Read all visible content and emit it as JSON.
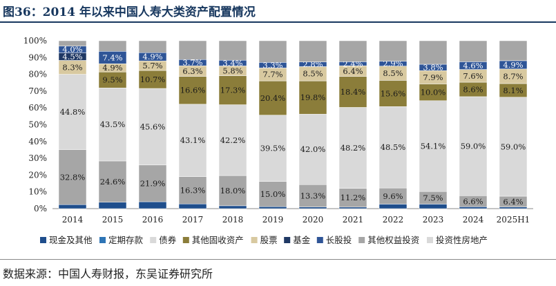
{
  "header": {
    "title": "图36：2014 年以来中国人寿大类资产配置情况"
  },
  "footer": {
    "source": "数据来源：中国人寿财报，东吴证券研究所"
  },
  "colors": {
    "cash": "#1f4e8c",
    "deposit": "#2e75b6",
    "bond": "#d9d9d9",
    "fixed_other": "#8b7d3a",
    "stock": "#d8c9a0",
    "fund": "#1f3864",
    "lt_equity": "#2f5597",
    "other_equity": "#a6a6a6",
    "property": "#d9d9d9"
  },
  "chart_data": {
    "type": "bar",
    "stacked": true,
    "categories": [
      "2014",
      "2015",
      "2016",
      "2017",
      "2018",
      "2019",
      "2020",
      "2021",
      "2022",
      "2023",
      "2024",
      "2025H1"
    ],
    "ylim": [
      0,
      100
    ],
    "yticks": [
      "0%",
      "10%",
      "20%",
      "30%",
      "40%",
      "50%",
      "60%",
      "70%",
      "80%",
      "90%",
      "100%"
    ],
    "legend_position": "bottom",
    "series": [
      {
        "name": "现金及其他",
        "key": "cash",
        "values": [
          2.4,
          3.8,
          4.1,
          2.8,
          1.7,
          1.2,
          1.0,
          0.9,
          2.7,
          2.7,
          1.1,
          1.0
        ],
        "labels": []
      },
      {
        "name": "定期存款",
        "key": "deposit",
        "values": [
          0,
          0,
          0,
          0,
          0,
          0,
          0,
          0,
          0,
          0,
          0,
          0
        ],
        "labels": []
      },
      {
        "name": "债券",
        "key": "bond",
        "values": [
          0,
          0,
          0,
          0,
          0,
          0,
          0,
          0,
          0,
          0,
          0,
          0
        ],
        "labels": []
      },
      {
        "name": "其他权益投资",
        "key": "other_equity",
        "values": [
          32.8,
          24.6,
          21.9,
          16.3,
          18.0,
          15.0,
          13.3,
          11.2,
          9.6,
          7.5,
          6.6,
          6.4
        ],
        "labels": [
          "32.8%",
          "24.6%",
          "21.9%",
          "16.3%",
          "18.0%",
          "15.0%",
          "13.3%",
          "11.2%",
          "9.6%",
          "7.5%",
          "6.6%",
          "6.4%"
        ]
      },
      {
        "name": "投资性房地产",
        "key": "property",
        "values": [
          44.8,
          43.5,
          45.6,
          43.1,
          42.2,
          39.5,
          42.0,
          48.2,
          48.5,
          54.1,
          59.0,
          59.0
        ],
        "labels": [
          "44.8%",
          "43.5%",
          "45.6%",
          "43.1%",
          "42.2%",
          "39.5%",
          "42.0%",
          "48.2%",
          "48.5%",
          "54.1%",
          "59.0%",
          "59.0%"
        ]
      },
      {
        "name": "其他固收资产",
        "key": "fixed_other",
        "values": [
          0,
          9.5,
          10.7,
          16.6,
          17.3,
          20.4,
          19.8,
          18.4,
          15.6,
          10.0,
          8.6,
          8.1
        ],
        "labels": [
          "",
          "9.5%",
          "10.7%",
          "16.6%",
          "17.3%",
          "20.4%",
          "19.8%",
          "18.4%",
          "15.6%",
          "10.0%",
          "8.6%",
          "8.1%"
        ]
      },
      {
        "name": "股票",
        "key": "stock",
        "values": [
          8.3,
          4.9,
          5.7,
          6.3,
          5.8,
          7.7,
          8.5,
          6.4,
          8.5,
          7.9,
          7.6,
          8.7
        ],
        "labels": [
          "8.3%",
          "4.9%",
          "5.7%",
          "6.3%",
          "5.8%",
          "7.7%",
          "8.5%",
          "6.4%",
          "8.5%",
          "7.9%",
          "7.6%",
          "8.7%"
        ]
      },
      {
        "name": "基金",
        "key": "fund",
        "values": [
          4.5,
          0,
          0,
          0,
          0,
          0,
          0,
          0,
          0,
          0,
          0,
          0
        ],
        "labels": [
          "4.5%",
          "",
          "",
          "",
          "",
          "",
          "",
          "",
          "",
          "",
          "",
          ""
        ]
      },
      {
        "name": "长股投",
        "key": "lt_equity",
        "values": [
          4.0,
          7.4,
          4.9,
          3.7,
          3.4,
          3.3,
          2.8,
          2.4,
          2.9,
          3.8,
          4.6,
          4.9
        ],
        "labels": [
          "4.0%",
          "7.4%",
          "4.9%",
          "3.7%",
          "3.4%",
          "3.3%",
          "2.8%",
          "2.4%",
          "2.9%",
          "3.8%",
          "4.6%",
          "4.9%"
        ]
      },
      {
        "name": "其他",
        "key": "other_equity",
        "values": [
          3.2,
          6.3,
          7.1,
          11.2,
          11.6,
          12.9,
          12.6,
          12.5,
          12.2,
          14.0,
          12.5,
          11.9
        ],
        "labels": []
      }
    ],
    "legend": [
      {
        "name": "现金及其他",
        "key": "cash"
      },
      {
        "name": "定期存款",
        "key": "deposit"
      },
      {
        "name": "债券",
        "key": "bond"
      },
      {
        "name": "其他固收资产",
        "key": "fixed_other"
      },
      {
        "name": "股票",
        "key": "stock"
      },
      {
        "name": "基金",
        "key": "fund"
      },
      {
        "name": "长股投",
        "key": "lt_equity"
      },
      {
        "name": "其他权益投资",
        "key": "other_equity"
      },
      {
        "name": "投资性房地产",
        "key": "property"
      }
    ]
  }
}
